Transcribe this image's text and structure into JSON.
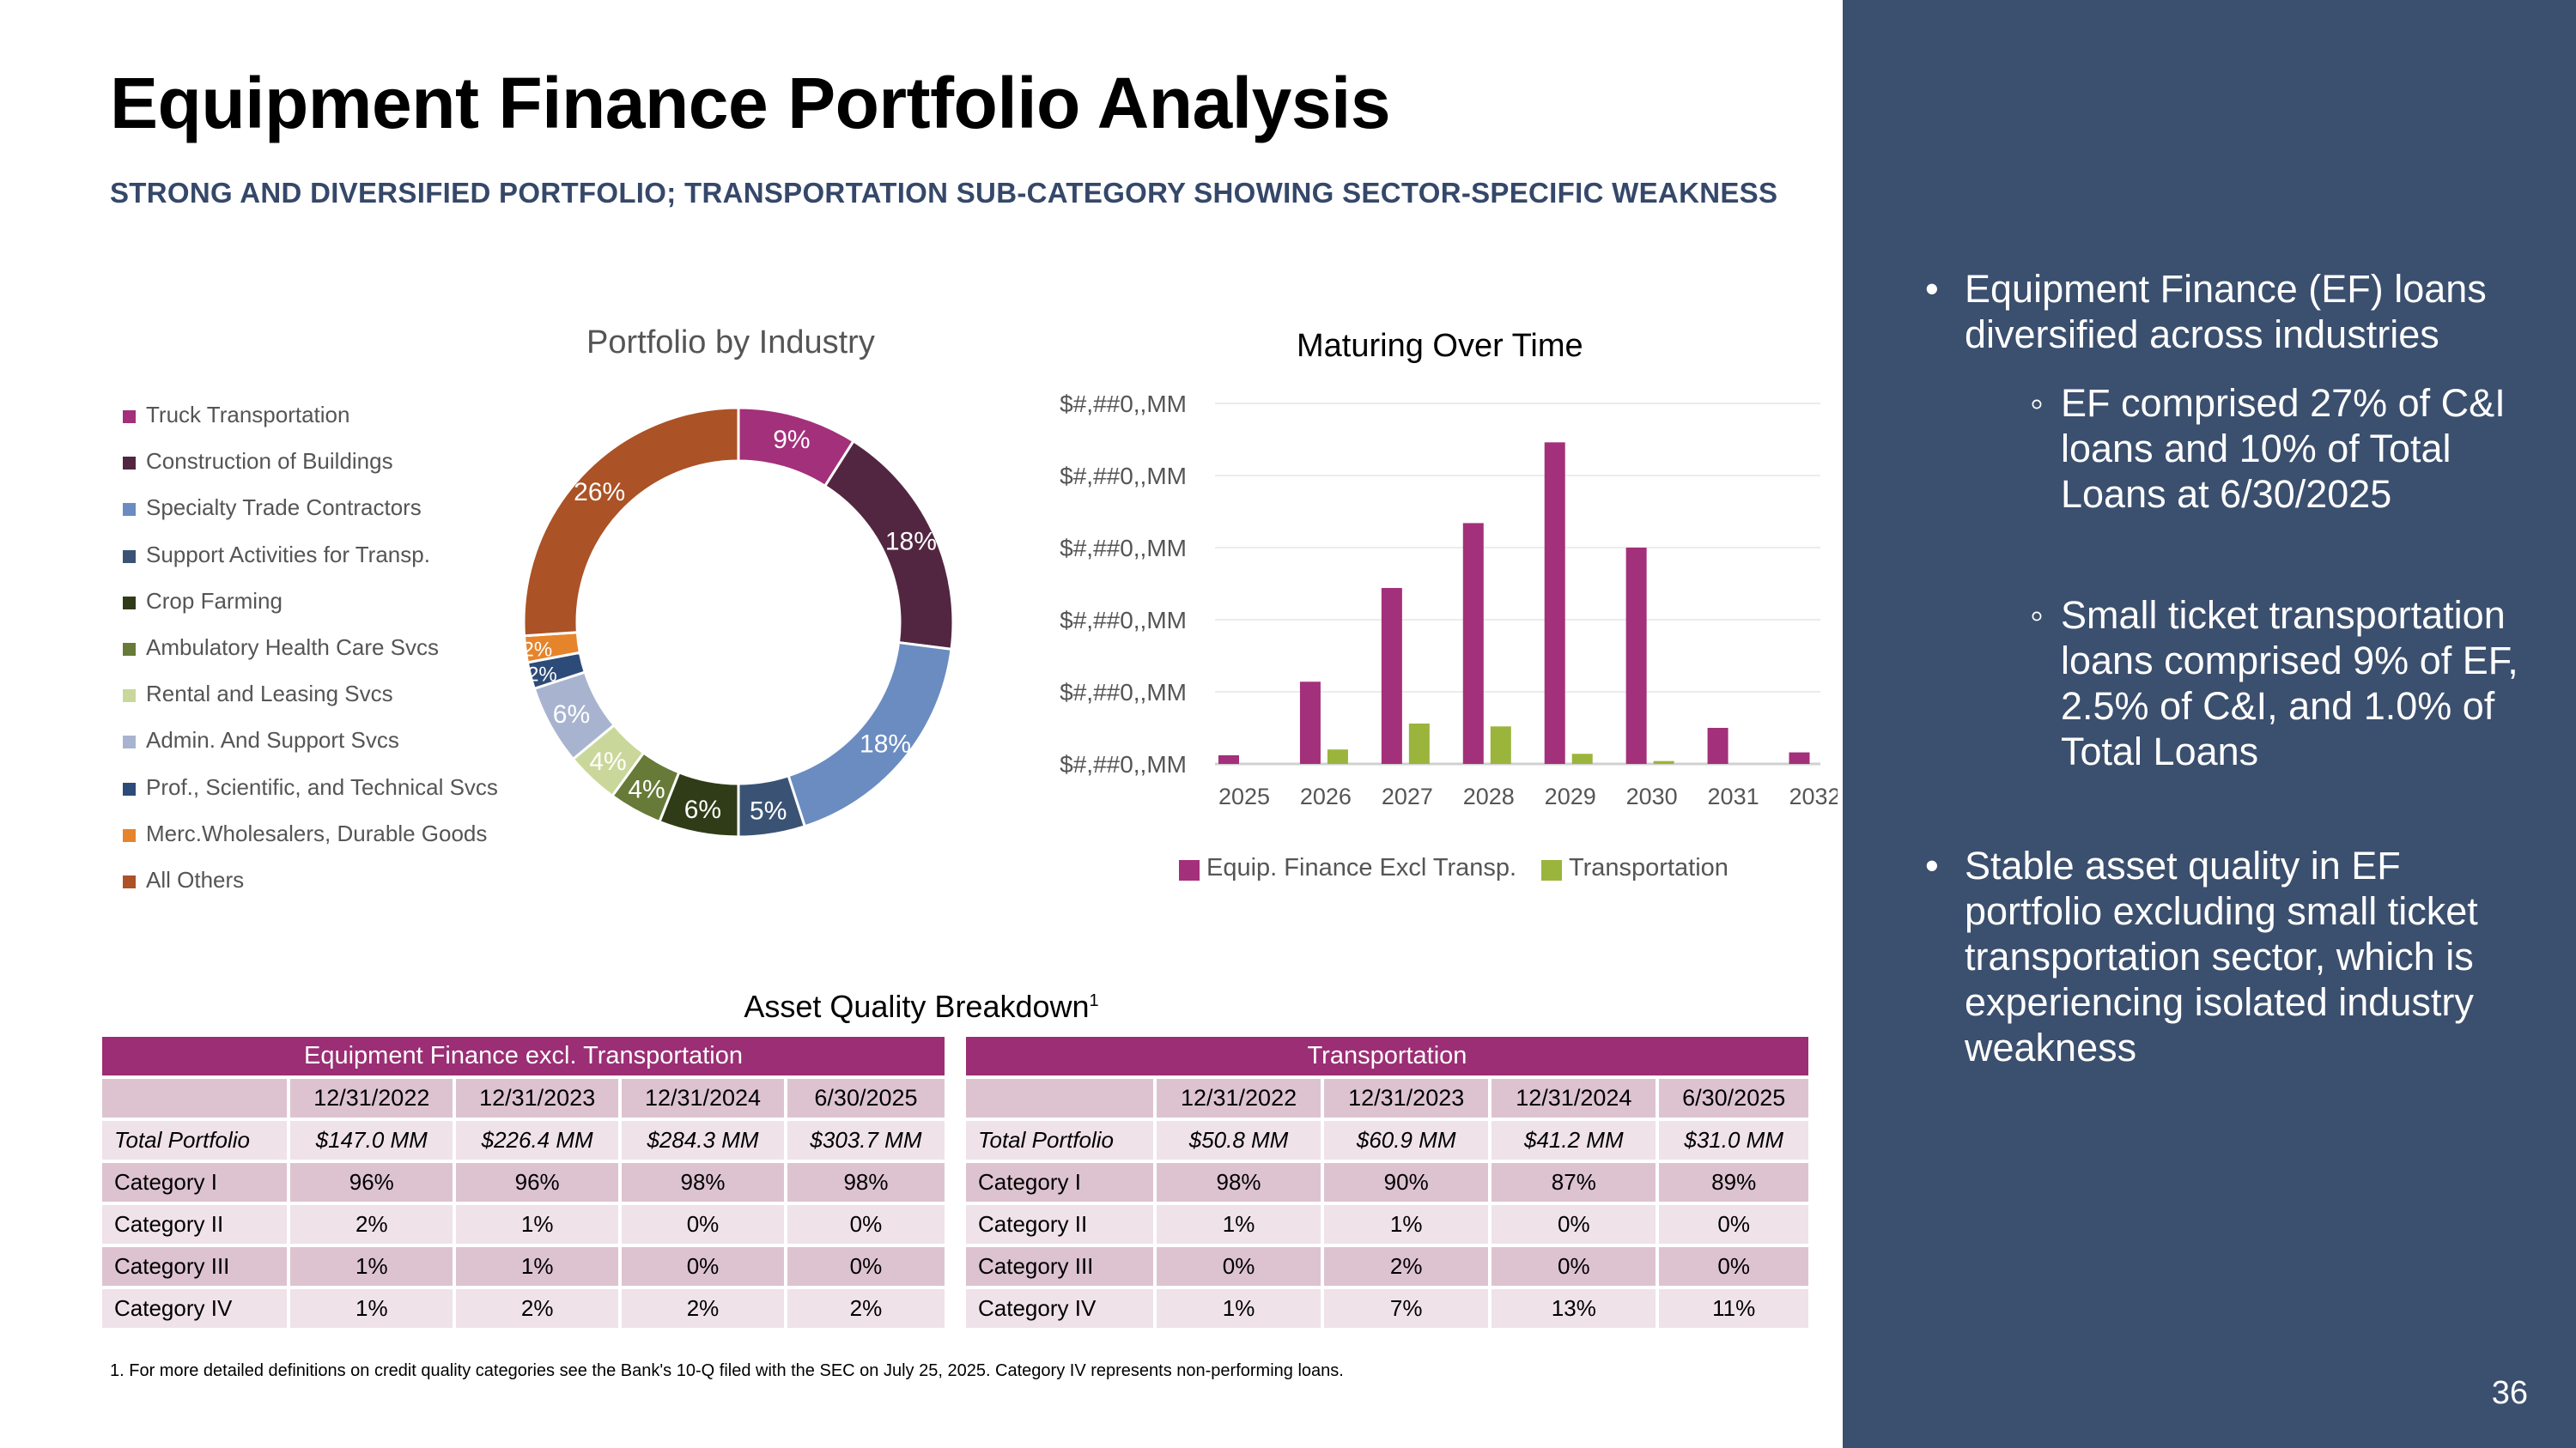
{
  "title": "Equipment Finance Portfolio Analysis",
  "subtitle": "STRONG AND DIVERSIFIED PORTFOLIO; TRANSPORTATION SUB-CATEGORY SHOWING SECTOR-SPECIFIC WEAKNESS",
  "colors": {
    "panel": "#3b4f6e",
    "accent": "#9b2e74",
    "transportation": "#9bb43c"
  },
  "donut": {
    "title": "Portfolio by Industry",
    "slices": [
      {
        "name": "Truck Transportation",
        "value": 9,
        "label": "9%",
        "color": "#a3307a"
      },
      {
        "name": "Construction of Buildings",
        "value": 18,
        "label": "18%",
        "color": "#522641"
      },
      {
        "name": "Specialty Trade Contractors",
        "value": 18,
        "label": "18%",
        "color": "#6a8cc0"
      },
      {
        "name": "Support Activities for Transp.",
        "value": 5,
        "label": "5%",
        "color": "#3a5375"
      },
      {
        "name": "Crop Farming",
        "value": 6,
        "label": "6%",
        "color": "#303c17"
      },
      {
        "name": "Ambulatory Health Care Svcs",
        "value": 4,
        "label": "4%",
        "color": "#677a38"
      },
      {
        "name": "Rental and Leasing Svcs",
        "value": 4,
        "label": "4%",
        "color": "#c9d89a"
      },
      {
        "name": "Admin. And Support Svcs",
        "value": 6,
        "label": "6%",
        "color": "#a8b4cf"
      },
      {
        "name": "Prof., Scientific, and Technical Svcs",
        "value": 2,
        "label": "2%",
        "color": "#2d4b78"
      },
      {
        "name": "Merc.Wholesalers, Durable Goods",
        "value": 2,
        "label": "2%",
        "color": "#e6842c"
      },
      {
        "name": "All Others",
        "value": 26,
        "label": "26%",
        "color": "#ab5226"
      }
    ]
  },
  "chart_data": {
    "type": "bar",
    "title": "Maturing Over Time",
    "categories": [
      "2025",
      "2026",
      "2027",
      "2028",
      "2029",
      "2030",
      "2031",
      "2032"
    ],
    "y_tick_labels": [
      "$#,##0,,MM",
      "$#,##0,,MM",
      "$#,##0,,MM",
      "$#,##0,,MM",
      "$#,##0,,MM",
      "$#,##0,,MM"
    ],
    "ylim": [
      0,
      250
    ],
    "grid": true,
    "legend_position": "bottom",
    "series": [
      {
        "name": "Equip. Finance Excl Transp.",
        "color": "#a3307a",
        "values": [
          6,
          57,
          122,
          167,
          223,
          150,
          25,
          8
        ]
      },
      {
        "name": "Transportation",
        "color": "#9bb43c",
        "values": [
          0,
          10,
          28,
          26,
          7,
          2,
          0,
          0
        ]
      }
    ]
  },
  "aq_title": "Asset Quality Breakdown",
  "aq_sup": "1",
  "tables": [
    {
      "header": "Equipment Finance excl. Transportation",
      "dates": [
        "12/31/2022",
        "12/31/2023",
        "12/31/2024",
        "6/30/2025"
      ],
      "rows": [
        {
          "label": "Total Portfolio",
          "cells": [
            "$147.0 MM",
            "$226.4 MM",
            "$284.3 MM",
            "$303.7 MM"
          ]
        },
        {
          "label": "Category I",
          "cells": [
            "96%",
            "96%",
            "98%",
            "98%"
          ]
        },
        {
          "label": "Category II",
          "cells": [
            "2%",
            "1%",
            "0%",
            "0%"
          ]
        },
        {
          "label": "Category III",
          "cells": [
            "1%",
            "1%",
            "0%",
            "0%"
          ]
        },
        {
          "label": "Category IV",
          "cells": [
            "1%",
            "2%",
            "2%",
            "2%"
          ]
        }
      ]
    },
    {
      "header": "Transportation",
      "dates": [
        "12/31/2022",
        "12/31/2023",
        "12/31/2024",
        "6/30/2025"
      ],
      "rows": [
        {
          "label": "Total Portfolio",
          "cells": [
            "$50.8 MM",
            "$60.9 MM",
            "$41.2 MM",
            "$31.0 MM"
          ]
        },
        {
          "label": "Category I",
          "cells": [
            "98%",
            "90%",
            "87%",
            "89%"
          ]
        },
        {
          "label": "Category II",
          "cells": [
            "1%",
            "1%",
            "0%",
            "0%"
          ]
        },
        {
          "label": "Category III",
          "cells": [
            "0%",
            "2%",
            "0%",
            "0%"
          ]
        },
        {
          "label": "Category IV",
          "cells": [
            "1%",
            "7%",
            "13%",
            "11%"
          ]
        }
      ]
    }
  ],
  "footnote": "1.  For more detailed definitions on credit quality categories see the Bank's 10-Q filed with the SEC on July 25, 2025. Category IV represents non-performing loans.",
  "side": {
    "b1": "Equipment Finance (EF) loans diversified across industries",
    "s1": "EF comprised 27% of C&I loans and 10% of Total Loans at 6/30/2025",
    "s2": "Small ticket transportation loans comprised 9% of EF, 2.5% of C&I, and 1.0% of Total Loans",
    "b2": "Stable asset quality in EF portfolio excluding small ticket transportation sector, which is experiencing isolated industry weakness",
    "page_number": "36"
  }
}
